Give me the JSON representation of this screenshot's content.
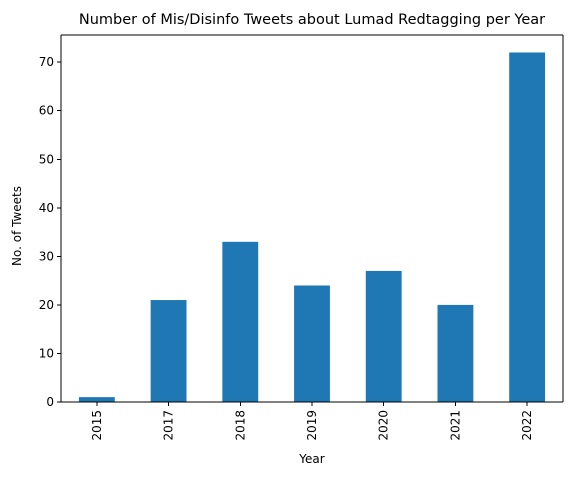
{
  "chart_data": {
    "type": "bar",
    "title": "Number of Mis/Disinfo Tweets about Lumad Redtagging per Year",
    "xlabel": "Year",
    "ylabel": "No. of Tweets",
    "categories": [
      "2015",
      "2017",
      "2018",
      "2019",
      "2020",
      "2021",
      "2022"
    ],
    "values": [
      1,
      21,
      33,
      24,
      27,
      20,
      72
    ],
    "ylim": [
      0,
      75.6
    ],
    "yticks": [
      "0",
      "10",
      "20",
      "30",
      "40",
      "50",
      "60",
      "70"
    ],
    "bar_color": "#1f77b4",
    "grid": false,
    "legend": "none"
  }
}
